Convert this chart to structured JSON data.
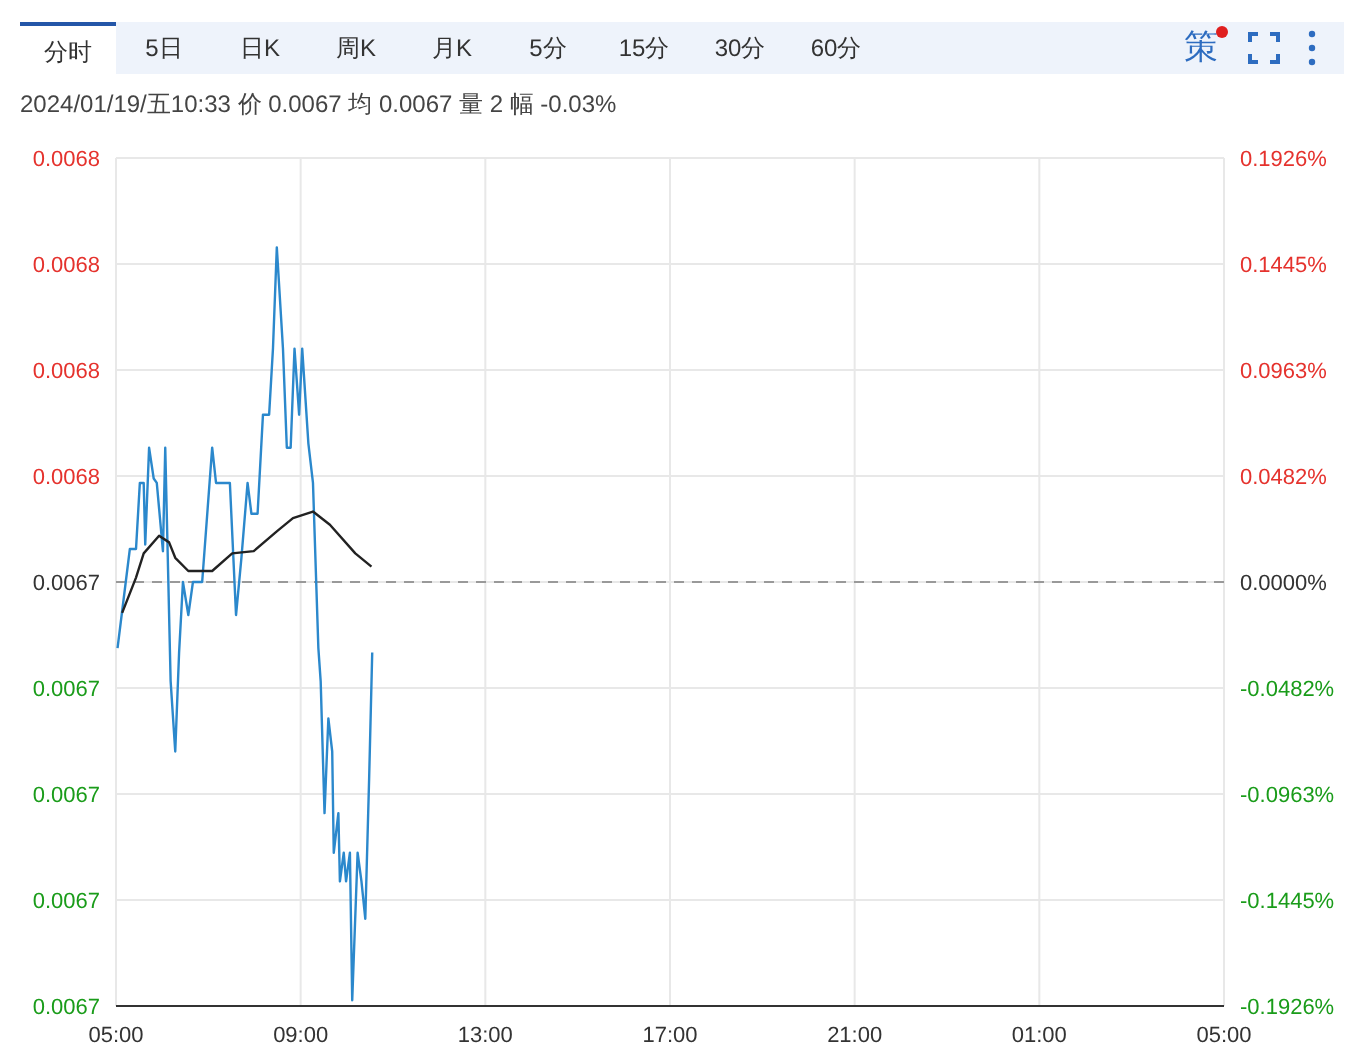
{
  "chart_data": {
    "type": "line",
    "title": "2024/01/19/五10:33 价 0.0067 均 0.0067 量 2 幅 -0.03%",
    "annotations": [
      "分时",
      "5日",
      "日K",
      "周K",
      "月K",
      "5分",
      "15分",
      "30分",
      "60分",
      "策",
      "0.0068",
      "0.0068",
      "0.0068",
      "0.0068",
      "0.0067",
      "0.0067",
      "0.0067",
      "0.0067",
      "0.0067"
    ],
    "xlim": [
      "2024-01-19T05:00",
      "2024-01-20T05:00"
    ],
    "xticks": [
      {
        "value": "2024-01-19T05:00",
        "label": "05:00"
      },
      {
        "value": "2024-01-19T09:00",
        "label": "09:00"
      },
      {
        "value": "2024-01-19T13:00",
        "label": "13:00"
      },
      {
        "value": "2024-01-19T17:00",
        "label": "17:00"
      },
      {
        "value": "2024-01-19T21:00",
        "label": "21:00"
      },
      {
        "value": "2024-01-20T01:00",
        "label": "01:00"
      },
      {
        "value": "2024-01-20T05:00",
        "label": "05:00"
      }
    ],
    "ylim": [
      -0.1926,
      0.1926
    ],
    "yticks": [
      {
        "value": 0.1926,
        "label": "0.1926%"
      },
      {
        "value": 0.1445,
        "label": "0.1445%"
      },
      {
        "value": 0.0963,
        "label": "0.0963%"
      },
      {
        "value": 0.0482,
        "label": "0.0482%"
      },
      {
        "value": 0,
        "label": "0.0000%"
      },
      {
        "value": -0.0482,
        "label": "-0.0482%"
      },
      {
        "value": -0.0963,
        "label": "-0.0963%"
      },
      {
        "value": -0.1445,
        "label": "-0.1445%"
      },
      {
        "value": -0.1926,
        "label": "-0.1926%"
      }
    ],
    "grid": true,
    "ref_lines": [
      {
        "axis": "y",
        "value": 0,
        "line_style": "dashed",
        "color": "#999999"
      }
    ],
    "series": [
      {
        "color": "#2b88cc",
        "x": [
          "2024-01-19T05:02",
          "2024-01-19T05:18",
          "2024-01-19T05:26",
          "2024-01-19T05:31",
          "2024-01-19T05:36",
          "2024-01-19T05:38",
          "2024-01-19T05:43",
          "2024-01-19T05:49",
          "2024-01-19T05:53",
          "2024-01-19T06:01",
          "2024-01-19T06:04",
          "2024-01-19T06:11",
          "2024-01-19T06:17",
          "2024-01-19T06:22",
          "2024-01-19T06:27",
          "2024-01-19T06:34",
          "2024-01-19T06:40",
          "2024-01-19T06:52",
          "2024-01-19T07:05",
          "2024-01-19T07:10",
          "2024-01-19T07:28",
          "2024-01-19T07:36",
          "2024-01-19T07:43",
          "2024-01-19T07:51",
          "2024-01-19T07:56",
          "2024-01-19T08:04",
          "2024-01-19T08:11",
          "2024-01-19T08:19",
          "2024-01-19T08:24",
          "2024-01-19T08:29",
          "2024-01-19T08:37",
          "2024-01-19T08:42",
          "2024-01-19T08:47",
          "2024-01-19T08:52",
          "2024-01-19T08:58",
          "2024-01-19T09:02",
          "2024-01-19T09:10",
          "2024-01-19T09:16",
          "2024-01-19T09:20",
          "2024-01-19T09:23",
          "2024-01-19T09:26",
          "2024-01-19T09:31",
          "2024-01-19T09:36",
          "2024-01-19T09:41",
          "2024-01-19T09:43",
          "2024-01-19T09:49",
          "2024-01-19T09:51",
          "2024-01-19T09:56",
          "2024-01-19T09:59",
          "2024-01-19T10:04",
          "2024-01-19T10:07",
          "2024-01-19T10:14",
          "2024-01-19T10:19",
          "2024-01-19T10:24",
          "2024-01-19T10:29",
          "2024-01-19T10:33"
        ],
        "values": [
          -0.03,
          0.015,
          0.015,
          0.045,
          0.045,
          0.017,
          0.061,
          0.047,
          0.045,
          0.014,
          0.061,
          -0.045,
          -0.077,
          -0.032,
          0,
          -0.015,
          0,
          0,
          0.061,
          0.045,
          0.045,
          -0.015,
          0.011,
          0.045,
          0.031,
          0.031,
          0.076,
          0.076,
          0.106,
          0.152,
          0.106,
          0.061,
          0.061,
          0.106,
          0.076,
          0.106,
          0.063,
          0.045,
          0.002,
          -0.03,
          -0.045,
          -0.105,
          -0.062,
          -0.077,
          -0.123,
          -0.105,
          -0.136,
          -0.123,
          -0.136,
          -0.123,
          -0.19,
          -0.123,
          -0.136,
          -0.153,
          -0.089,
          -0.032
        ]
      },
      {
        "color": "#222222",
        "x": [
          "2024-01-19T05:08",
          "2024-01-19T05:26",
          "2024-01-19T05:36",
          "2024-01-19T05:56",
          "2024-01-19T06:09",
          "2024-01-19T06:17",
          "2024-01-19T06:34",
          "2024-01-19T07:05",
          "2024-01-19T07:31",
          "2024-01-19T07:59",
          "2024-01-19T08:29",
          "2024-01-19T08:50",
          "2024-01-19T09:16",
          "2024-01-19T09:38",
          "2024-01-19T10:11",
          "2024-01-19T10:32"
        ],
        "values": [
          -0.014,
          0.002,
          0.013,
          0.021,
          0.018,
          0.011,
          0.005,
          0.005,
          0.013,
          0.014,
          0.023,
          0.029,
          0.032,
          0.026,
          0.013,
          0.007
        ]
      }
    ]
  }
}
